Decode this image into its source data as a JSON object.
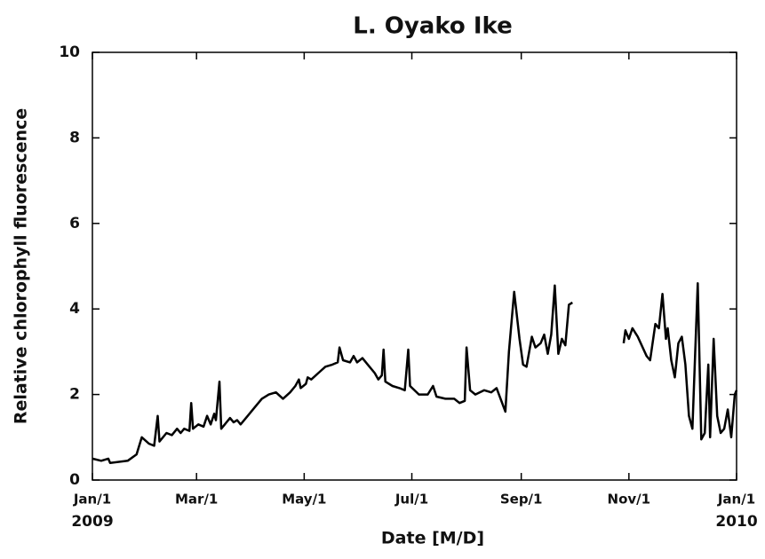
{
  "chart_data": {
    "type": "line",
    "title": "L. Oyako Ike",
    "xlabel": "Date [M/D]",
    "ylabel": "Relative chlorophyll fluorescence",
    "x": [
      0,
      5,
      9,
      10,
      20,
      25,
      28,
      32,
      35,
      37,
      38,
      42,
      45,
      48,
      50,
      52,
      55,
      56,
      57,
      60,
      63,
      65,
      67,
      69,
      70,
      72,
      73,
      75,
      78,
      80,
      82,
      84,
      88,
      92,
      96,
      100,
      104,
      108,
      112,
      115,
      117,
      118,
      121,
      122,
      124,
      128,
      132,
      136,
      139,
      140,
      142,
      146,
      148,
      150,
      153,
      156,
      160,
      162,
      164,
      165,
      166,
      170,
      174,
      177,
      179,
      180,
      185,
      190,
      193,
      195,
      200,
      205,
      208,
      211,
      212,
      214,
      217,
      222,
      226,
      229,
      234,
      236,
      239,
      242,
      244,
      246,
      249,
      251,
      254,
      256,
      258,
      260,
      262,
      264,
      266,
      268,
      270,
      272,
      null,
      301,
      302,
      304,
      306,
      309,
      314,
      316,
      319,
      321,
      323,
      325,
      326,
      328,
      330,
      332,
      334,
      336,
      338,
      340,
      343,
      345,
      347,
      349,
      350,
      352,
      354,
      356,
      358,
      360,
      362,
      364,
      365
    ],
    "series": [
      {
        "name": "L. Oyako Ike",
        "color": "#000000",
        "values": [
          0.5,
          0.45,
          0.5,
          0.4,
          0.45,
          0.6,
          1.0,
          0.85,
          0.8,
          1.5,
          0.9,
          1.1,
          1.05,
          1.2,
          1.1,
          1.2,
          1.15,
          1.8,
          1.2,
          1.3,
          1.25,
          1.5,
          1.3,
          1.55,
          1.4,
          2.3,
          1.2,
          1.3,
          1.45,
          1.35,
          1.4,
          1.3,
          1.5,
          1.7,
          1.9,
          2.0,
          2.05,
          1.9,
          2.05,
          2.2,
          2.35,
          2.15,
          2.25,
          2.4,
          2.35,
          2.5,
          2.65,
          2.7,
          2.75,
          3.1,
          2.8,
          2.75,
          2.9,
          2.75,
          2.85,
          2.7,
          2.5,
          2.35,
          2.45,
          3.05,
          2.3,
          2.2,
          2.15,
          2.1,
          3.05,
          2.2,
          2.0,
          2.0,
          2.2,
          1.95,
          1.9,
          1.9,
          1.8,
          1.85,
          3.1,
          2.1,
          2.0,
          2.1,
          2.05,
          2.15,
          1.6,
          3.0,
          4.4,
          3.3,
          2.7,
          2.65,
          3.35,
          3.1,
          3.2,
          3.4,
          2.95,
          3.4,
          4.55,
          2.95,
          3.3,
          3.15,
          4.1,
          4.15,
          null,
          3.2,
          3.5,
          3.3,
          3.55,
          3.35,
          2.9,
          2.8,
          3.65,
          3.55,
          4.35,
          3.3,
          3.55,
          2.8,
          2.4,
          3.2,
          3.35,
          2.7,
          1.5,
          1.2,
          4.6,
          0.95,
          1.1,
          2.7,
          1.0,
          3.3,
          1.5,
          1.1,
          1.2,
          1.65,
          1.0,
          2.0,
          2.1
        ]
      }
    ],
    "xlim": [
      0,
      365
    ],
    "xticks": [
      {
        "value": 0,
        "label": "Jan/1"
      },
      {
        "value": 59,
        "label": "Mar/1"
      },
      {
        "value": 120,
        "label": "May/1"
      },
      {
        "value": 181,
        "label": "Jul/1"
      },
      {
        "value": 243,
        "label": "Sep/1"
      },
      {
        "value": 304,
        "label": "Nov/1"
      },
      {
        "value": 365,
        "label": "Jan/1"
      }
    ],
    "year_labels": [
      {
        "value": 0,
        "label": "2009"
      },
      {
        "value": 365,
        "label": "2010"
      }
    ],
    "ylim": [
      0,
      10
    ],
    "yticks": [
      0,
      2,
      4,
      6,
      8,
      10
    ],
    "grid": false
  }
}
